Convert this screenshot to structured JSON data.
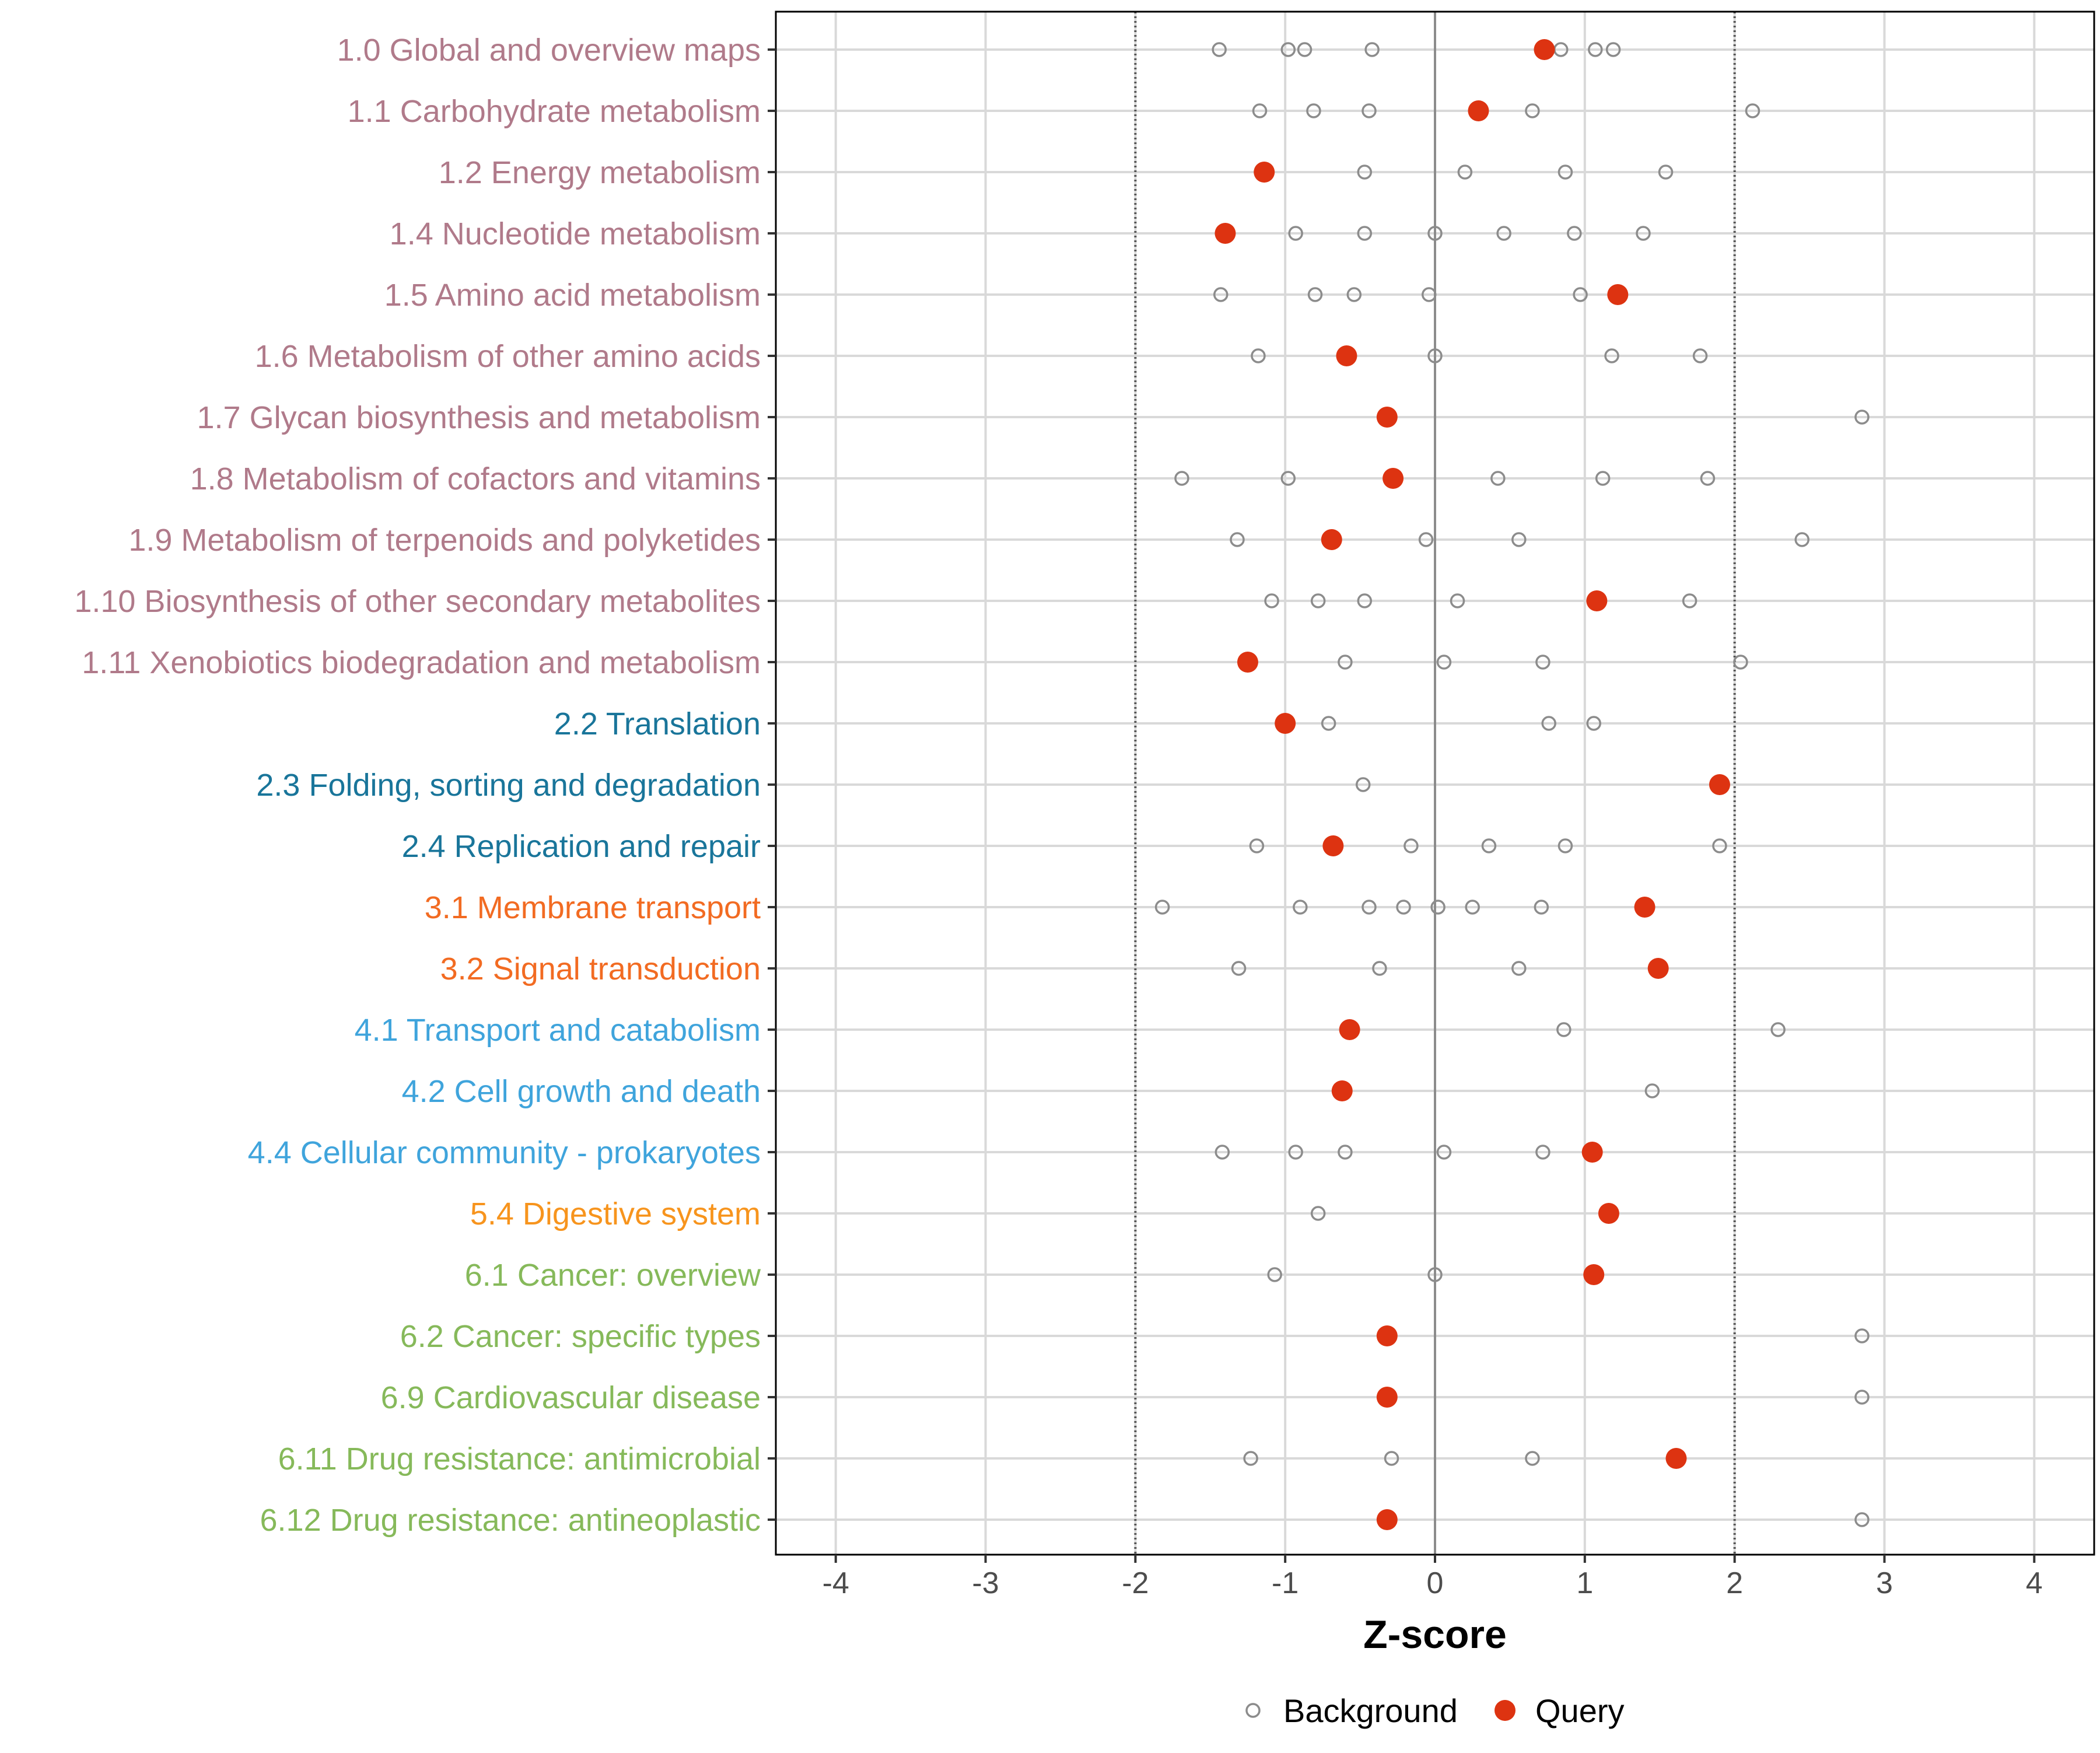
{
  "chart_data": {
    "type": "scatter",
    "title": "",
    "xlabel": "Z-score",
    "ylabel": "",
    "xlim": [
      -4.4,
      4.4
    ],
    "xticks": [
      -4,
      -3,
      -2,
      -1,
      0,
      1,
      2,
      3,
      4
    ],
    "x_tick_labels": [
      "-4",
      "-3",
      "-2",
      "-1",
      "0",
      "1",
      "2",
      "3",
      "4"
    ],
    "reference_lines": [
      -2,
      2
    ],
    "legend_position": "bottom",
    "colors": {
      "metabolism": "#B07A8A",
      "genetic": "#19759A",
      "environmental": "#F26B22",
      "cellular": "#3FA4DC",
      "organismal": "#F7941D",
      "disease": "#86B95A",
      "query": "#DD3311",
      "background": "#8C8C8C",
      "grid": "#D9D9D9",
      "zero_line": "#8C8C8C",
      "ref_line": "#555555"
    },
    "series": [
      {
        "name": "Background",
        "marker": "open-circle"
      },
      {
        "name": "Query",
        "marker": "filled-circle"
      }
    ],
    "categories": [
      {
        "label": "1.0 Global and overview maps",
        "group": "metabolism",
        "query": 0.73,
        "background": [
          -1.44,
          -0.98,
          -0.87,
          -0.42,
          0.84,
          1.07,
          1.19
        ]
      },
      {
        "label": "1.1 Carbohydrate metabolism",
        "group": "metabolism",
        "query": 0.29,
        "background": [
          -1.17,
          -0.81,
          -0.44,
          0.65,
          2.12
        ]
      },
      {
        "label": "1.2 Energy metabolism",
        "group": "metabolism",
        "query": -1.14,
        "background": [
          -0.47,
          0.2,
          0.87,
          1.54
        ]
      },
      {
        "label": "1.4 Nucleotide metabolism",
        "group": "metabolism",
        "query": -1.4,
        "background": [
          -0.93,
          -0.47,
          0.0,
          0.46,
          0.93,
          1.39
        ]
      },
      {
        "label": "1.5 Amino acid metabolism",
        "group": "metabolism",
        "query": 1.22,
        "background": [
          -1.43,
          -0.8,
          -0.54,
          -0.04,
          0.97
        ]
      },
      {
        "label": "1.6 Metabolism of other amino acids",
        "group": "metabolism",
        "query": -0.59,
        "background": [
          -1.18,
          0.0,
          1.18,
          1.77
        ]
      },
      {
        "label": "1.7 Glycan biosynthesis and metabolism",
        "group": "metabolism",
        "query": -0.32,
        "background": [
          2.85
        ]
      },
      {
        "label": "1.8 Metabolism of cofactors and vitamins",
        "group": "metabolism",
        "query": -0.28,
        "background": [
          -1.69,
          -0.98,
          0.42,
          1.12,
          1.82
        ]
      },
      {
        "label": "1.9 Metabolism of terpenoids and polyketides",
        "group": "metabolism",
        "query": -0.69,
        "background": [
          -1.32,
          -0.06,
          0.56,
          2.45
        ]
      },
      {
        "label": "1.10 Biosynthesis of other secondary metabolites",
        "group": "metabolism",
        "query": 1.08,
        "background": [
          -1.09,
          -0.78,
          -0.47,
          0.15,
          1.7
        ]
      },
      {
        "label": "1.11 Xenobiotics biodegradation and metabolism",
        "group": "metabolism",
        "query": -1.25,
        "background": [
          -0.6,
          0.06,
          0.72,
          2.04
        ]
      },
      {
        "label": "2.2 Translation",
        "group": "genetic",
        "query": -1.0,
        "background": [
          -0.71,
          0.76,
          1.06
        ]
      },
      {
        "label": "2.3 Folding, sorting and degradation",
        "group": "genetic",
        "query": 1.9,
        "background": [
          -0.48
        ]
      },
      {
        "label": "2.4 Replication and repair",
        "group": "genetic",
        "query": -0.68,
        "background": [
          -1.19,
          -0.16,
          0.36,
          0.87,
          1.9
        ]
      },
      {
        "label": "3.1 Membrane transport",
        "group": "environmental",
        "query": 1.4,
        "background": [
          -1.82,
          -0.9,
          -0.44,
          -0.21,
          0.02,
          0.25,
          0.71
        ]
      },
      {
        "label": "3.2 Signal transduction",
        "group": "environmental",
        "query": 1.49,
        "background": [
          -1.31,
          -0.37,
          0.56
        ]
      },
      {
        "label": "4.1 Transport and catabolism",
        "group": "cellular",
        "query": -0.57,
        "background": [
          0.86,
          2.29
        ]
      },
      {
        "label": "4.2 Cell growth and death",
        "group": "cellular",
        "query": -0.62,
        "background": [
          1.45
        ]
      },
      {
        "label": "4.4 Cellular community - prokaryotes",
        "group": "cellular",
        "query": 1.05,
        "background": [
          -1.42,
          -0.93,
          -0.6,
          0.06,
          0.72
        ]
      },
      {
        "label": "5.4 Digestive system",
        "group": "organismal",
        "query": 1.16,
        "background": [
          -0.78
        ]
      },
      {
        "label": "6.1 Cancer: overview",
        "group": "disease",
        "query": 1.06,
        "background": [
          -1.07,
          0.0
        ]
      },
      {
        "label": "6.2 Cancer: specific types",
        "group": "disease",
        "query": -0.32,
        "background": [
          2.85
        ]
      },
      {
        "label": "6.9 Cardiovascular disease",
        "group": "disease",
        "query": -0.32,
        "background": [
          2.85
        ]
      },
      {
        "label": "6.11 Drug resistance: antimicrobial",
        "group": "disease",
        "query": 1.61,
        "background": [
          -1.23,
          -0.29,
          0.65
        ]
      },
      {
        "label": "6.12 Drug resistance: antineoplastic",
        "group": "disease",
        "query": -0.32,
        "background": [
          2.85
        ]
      }
    ]
  }
}
